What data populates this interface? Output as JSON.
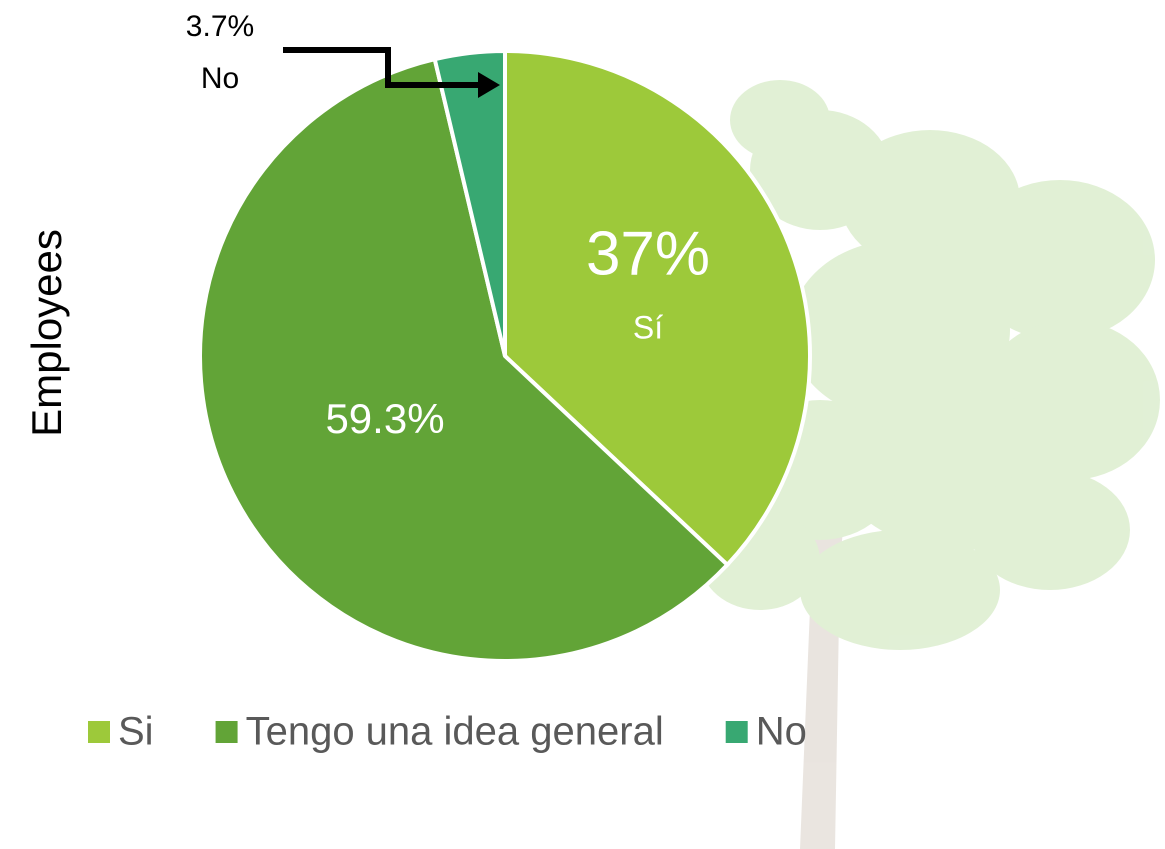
{
  "chart_data": {
    "type": "pie",
    "y_label": "Employees",
    "categories": [
      "Si",
      "Tengo una idea general",
      "No"
    ],
    "values": [
      37,
      59.3,
      3.7
    ],
    "value_labels": [
      "37%",
      "59.3%",
      "3.7%"
    ],
    "slice_labels": [
      "Sí",
      null,
      "No"
    ],
    "colors": [
      "#9dc93a",
      "#62a437",
      "#38a872"
    ],
    "legend": "bottom"
  }
}
